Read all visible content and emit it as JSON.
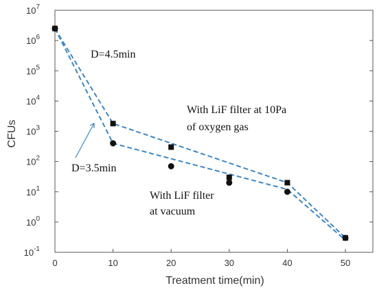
{
  "chart_data": {
    "type": "scatter",
    "xlabel": "Treatment time(min)",
    "ylabel": "CFUs",
    "xlim": [
      0,
      55
    ],
    "ylim_log10": [
      -1,
      7
    ],
    "y_scale": "log",
    "x_ticks": [
      "0",
      "10",
      "20",
      "30",
      "40",
      "50"
    ],
    "y_tick_exponents": [
      "-1",
      "0",
      "1",
      "2",
      "3",
      "4",
      "5",
      "6",
      "7"
    ],
    "y_tick_base": "10",
    "grid": false,
    "series": [
      {
        "name": "With LiF filter at 10Pa of oxygen gas",
        "marker": "square",
        "color": "#111111",
        "points": [
          [
            0,
            2500000
          ],
          [
            10,
            1800
          ],
          [
            20,
            300
          ],
          [
            30,
            30
          ],
          [
            40,
            20
          ],
          [
            50,
            0.3
          ]
        ],
        "fit_color": "#3a86c8",
        "fit": [
          [
            0,
            2500000
          ],
          [
            10,
            1800
          ],
          [
            40,
            20
          ],
          [
            50,
            0.3
          ]
        ]
      },
      {
        "name": "With LiF filter at vacuum",
        "marker": "circle",
        "color": "#111111",
        "points": [
          [
            0,
            2500000
          ],
          [
            10,
            400
          ],
          [
            20,
            70
          ],
          [
            30,
            20
          ],
          [
            40,
            10
          ],
          [
            50,
            0.3
          ]
        ],
        "fit_color": "#3a86c8",
        "fit": [
          [
            0,
            2500000
          ],
          [
            10,
            400
          ],
          [
            40,
            12
          ],
          [
            50,
            0.25
          ]
        ]
      }
    ],
    "annotations": {
      "d1": "D=4.5min",
      "d2": "D=3.5min",
      "oxygen_line1": "With LiF filter at 10Pa",
      "oxygen_line2": "of oxygen gas",
      "vacuum_line1": "With LiF filter",
      "vacuum_line2": "at vacuum"
    },
    "arrow_color": "#3a86c8"
  }
}
